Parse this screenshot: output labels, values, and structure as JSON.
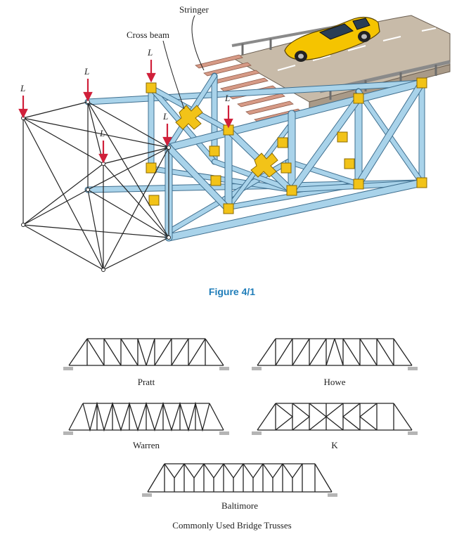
{
  "figure1": {
    "callouts": {
      "stringer": "Stringer",
      "cross_beam": "Cross beam"
    },
    "load_label": "L",
    "caption": "Figure 4/1"
  },
  "trusses": {
    "items": [
      {
        "name": "Pratt"
      },
      {
        "name": "Howe"
      },
      {
        "name": "Warren"
      },
      {
        "name": "K"
      },
      {
        "name": "Baltimore"
      }
    ],
    "caption": "Commonly Used Bridge Trusses"
  },
  "colors": {
    "steel": "#a9d3ea",
    "steel_edge": "#3f6f8f",
    "gusset": "#f2c318",
    "deck": "#c8bba9",
    "stringer": "#d69a86",
    "load_arrow": "#d0203a",
    "car": "#f5c400",
    "caption_blue": "#1f7db9",
    "ground": "#b5b5b5"
  }
}
